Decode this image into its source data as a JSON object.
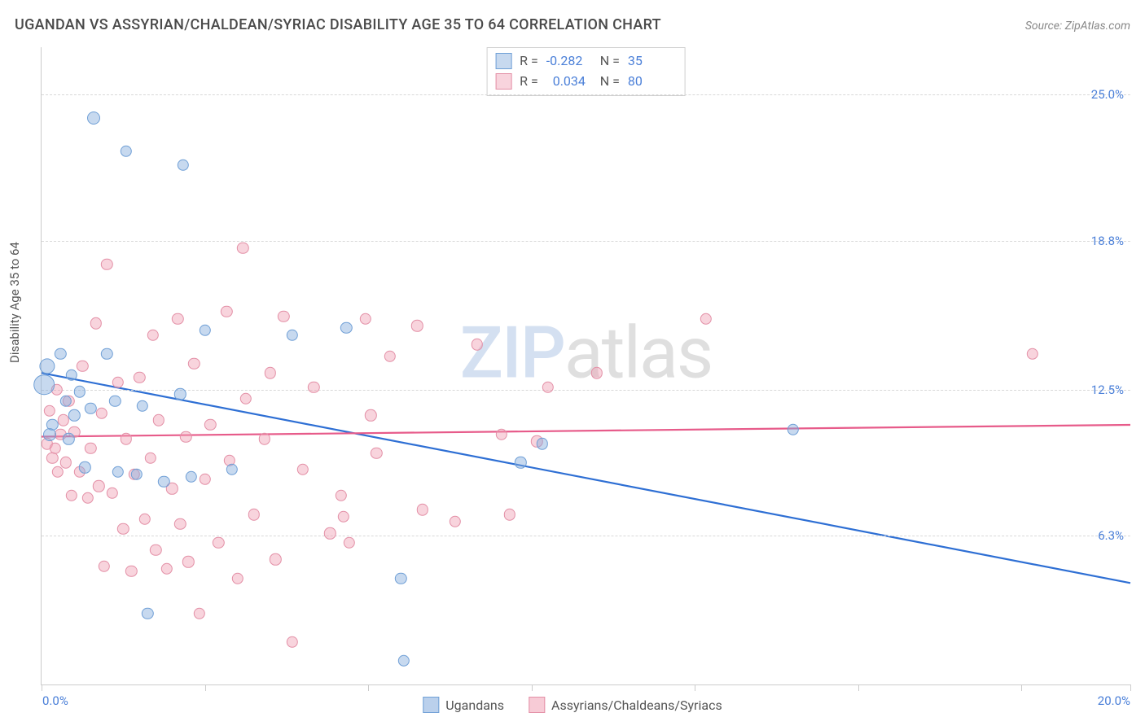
{
  "title": "UGANDAN VS ASSYRIAN/CHALDEAN/SYRIAC DISABILITY AGE 35 TO 64 CORRELATION CHART",
  "source": "Source: ZipAtlas.com",
  "ylabel": "Disability Age 35 to 64",
  "watermark_a": "ZIP",
  "watermark_b": "atlas",
  "chart": {
    "type": "scatter",
    "xlim": [
      0,
      20
    ],
    "ylim": [
      0,
      27
    ],
    "background_color": "#ffffff",
    "grid_color": "#d8d8d8",
    "axis_color": "#cccccc",
    "tick_label_color": "#4a7fd8",
    "x_ticks": [
      0,
      3.0,
      6.0,
      9.0,
      12.0,
      15.0,
      18.0,
      20.0
    ],
    "x_tick_labels": {
      "0": "0.0%",
      "20": "20.0%"
    },
    "y_ticks": [
      6.3,
      12.5,
      18.8,
      25.0
    ],
    "y_tick_labels": [
      "6.3%",
      "12.5%",
      "18.8%",
      "25.0%"
    ],
    "marker_base_radius": 8,
    "marker_border_width": 1.2,
    "trend_line_width": 2.2
  },
  "series": [
    {
      "name": "Ugandans",
      "fill": "rgba(130,170,220,0.45)",
      "stroke": "#6f9fd6",
      "line_color": "#2e6fd4",
      "R": "-0.282",
      "N": "35",
      "trend": {
        "x1": 0,
        "y1": 13.2,
        "x2": 20,
        "y2": 4.3
      },
      "points": [
        {
          "x": 0.05,
          "y": 12.7,
          "s": 1.6
        },
        {
          "x": 0.1,
          "y": 13.5,
          "s": 1.2
        },
        {
          "x": 0.15,
          "y": 10.6,
          "s": 1.0
        },
        {
          "x": 0.2,
          "y": 11.0,
          "s": 0.9
        },
        {
          "x": 0.35,
          "y": 14.0,
          "s": 0.9
        },
        {
          "x": 0.45,
          "y": 12.0,
          "s": 0.9
        },
        {
          "x": 0.5,
          "y": 10.4,
          "s": 0.9
        },
        {
          "x": 0.55,
          "y": 13.1,
          "s": 0.9
        },
        {
          "x": 0.6,
          "y": 11.4,
          "s": 0.9
        },
        {
          "x": 0.7,
          "y": 12.4,
          "s": 0.9
        },
        {
          "x": 0.8,
          "y": 9.2,
          "s": 0.9
        },
        {
          "x": 0.9,
          "y": 11.7,
          "s": 0.9
        },
        {
          "x": 0.95,
          "y": 24.0,
          "s": 1.0
        },
        {
          "x": 1.2,
          "y": 14.0,
          "s": 0.9
        },
        {
          "x": 1.35,
          "y": 12.0,
          "s": 0.9
        },
        {
          "x": 1.4,
          "y": 9.0,
          "s": 0.9
        },
        {
          "x": 1.55,
          "y": 22.6,
          "s": 0.9
        },
        {
          "x": 1.75,
          "y": 8.9,
          "s": 0.9
        },
        {
          "x": 1.85,
          "y": 11.8,
          "s": 0.9
        },
        {
          "x": 1.95,
          "y": 3.0,
          "s": 0.9
        },
        {
          "x": 2.25,
          "y": 8.6,
          "s": 0.9
        },
        {
          "x": 2.55,
          "y": 12.3,
          "s": 0.9
        },
        {
          "x": 2.6,
          "y": 22.0,
          "s": 0.9
        },
        {
          "x": 2.75,
          "y": 8.8,
          "s": 0.9
        },
        {
          "x": 3.0,
          "y": 15.0,
          "s": 0.9
        },
        {
          "x": 3.5,
          "y": 9.1,
          "s": 0.9
        },
        {
          "x": 4.6,
          "y": 14.8,
          "s": 0.9
        },
        {
          "x": 5.6,
          "y": 15.1,
          "s": 0.9
        },
        {
          "x": 6.6,
          "y": 4.5,
          "s": 0.9
        },
        {
          "x": 6.65,
          "y": 1.0,
          "s": 0.9
        },
        {
          "x": 8.8,
          "y": 9.4,
          "s": 0.9
        },
        {
          "x": 9.2,
          "y": 10.2,
          "s": 0.9
        },
        {
          "x": 13.8,
          "y": 10.8,
          "s": 0.9
        }
      ]
    },
    {
      "name": "Assyrians/Chaldeans/Syriacs",
      "fill": "rgba(240,160,180,0.45)",
      "stroke": "#e38fa6",
      "line_color": "#e75b8a",
      "R": "0.034",
      "N": "80",
      "trend": {
        "x1": 0,
        "y1": 10.5,
        "x2": 20,
        "y2": 11.0
      },
      "points": [
        {
          "x": 0.1,
          "y": 10.2,
          "s": 0.9
        },
        {
          "x": 0.15,
          "y": 11.6,
          "s": 0.9
        },
        {
          "x": 0.2,
          "y": 9.6,
          "s": 0.9
        },
        {
          "x": 0.25,
          "y": 10.0,
          "s": 0.9
        },
        {
          "x": 0.28,
          "y": 12.5,
          "s": 0.9
        },
        {
          "x": 0.3,
          "y": 9.0,
          "s": 0.9
        },
        {
          "x": 0.35,
          "y": 10.6,
          "s": 0.9
        },
        {
          "x": 0.4,
          "y": 11.2,
          "s": 0.9
        },
        {
          "x": 0.45,
          "y": 9.4,
          "s": 0.9
        },
        {
          "x": 0.5,
          "y": 12.0,
          "s": 0.9
        },
        {
          "x": 0.55,
          "y": 8.0,
          "s": 0.9
        },
        {
          "x": 0.6,
          "y": 10.7,
          "s": 0.9
        },
        {
          "x": 0.7,
          "y": 9.0,
          "s": 0.9
        },
        {
          "x": 0.75,
          "y": 13.5,
          "s": 0.9
        },
        {
          "x": 0.85,
          "y": 7.9,
          "s": 0.9
        },
        {
          "x": 0.9,
          "y": 10.0,
          "s": 0.9
        },
        {
          "x": 1.0,
          "y": 15.3,
          "s": 0.9
        },
        {
          "x": 1.05,
          "y": 8.4,
          "s": 0.9
        },
        {
          "x": 1.1,
          "y": 11.5,
          "s": 0.9
        },
        {
          "x": 1.15,
          "y": 5.0,
          "s": 0.9
        },
        {
          "x": 1.2,
          "y": 17.8,
          "s": 0.9
        },
        {
          "x": 1.3,
          "y": 8.1,
          "s": 0.9
        },
        {
          "x": 1.4,
          "y": 12.8,
          "s": 0.9
        },
        {
          "x": 1.5,
          "y": 6.6,
          "s": 0.9
        },
        {
          "x": 1.55,
          "y": 10.4,
          "s": 0.9
        },
        {
          "x": 1.65,
          "y": 4.8,
          "s": 0.9
        },
        {
          "x": 1.7,
          "y": 8.9,
          "s": 0.9
        },
        {
          "x": 1.8,
          "y": 13.0,
          "s": 0.9
        },
        {
          "x": 1.9,
          "y": 7.0,
          "s": 0.9
        },
        {
          "x": 2.0,
          "y": 9.6,
          "s": 0.9
        },
        {
          "x": 2.05,
          "y": 14.8,
          "s": 0.9
        },
        {
          "x": 2.1,
          "y": 5.7,
          "s": 0.9
        },
        {
          "x": 2.15,
          "y": 11.2,
          "s": 0.9
        },
        {
          "x": 2.3,
          "y": 4.9,
          "s": 0.9
        },
        {
          "x": 2.4,
          "y": 8.3,
          "s": 0.9
        },
        {
          "x": 2.5,
          "y": 15.5,
          "s": 0.9
        },
        {
          "x": 2.55,
          "y": 6.8,
          "s": 0.9
        },
        {
          "x": 2.65,
          "y": 10.5,
          "s": 0.9
        },
        {
          "x": 2.7,
          "y": 5.2,
          "s": 0.9
        },
        {
          "x": 2.8,
          "y": 13.6,
          "s": 0.9
        },
        {
          "x": 2.9,
          "y": 3.0,
          "s": 0.9
        },
        {
          "x": 3.0,
          "y": 8.7,
          "s": 0.9
        },
        {
          "x": 3.1,
          "y": 11.0,
          "s": 0.9
        },
        {
          "x": 3.25,
          "y": 6.0,
          "s": 0.9
        },
        {
          "x": 3.4,
          "y": 15.8,
          "s": 0.9
        },
        {
          "x": 3.45,
          "y": 9.5,
          "s": 0.9
        },
        {
          "x": 3.6,
          "y": 4.5,
          "s": 0.9
        },
        {
          "x": 3.7,
          "y": 18.5,
          "s": 0.9
        },
        {
          "x": 3.75,
          "y": 12.1,
          "s": 0.9
        },
        {
          "x": 3.9,
          "y": 7.2,
          "s": 0.9
        },
        {
          "x": 4.1,
          "y": 10.4,
          "s": 0.9
        },
        {
          "x": 4.2,
          "y": 13.2,
          "s": 0.9
        },
        {
          "x": 4.3,
          "y": 5.3,
          "s": 0.9
        },
        {
          "x": 4.45,
          "y": 15.6,
          "s": 0.9
        },
        {
          "x": 4.6,
          "y": 1.8,
          "s": 0.9
        },
        {
          "x": 4.8,
          "y": 9.1,
          "s": 0.9
        },
        {
          "x": 5.0,
          "y": 12.6,
          "s": 0.9
        },
        {
          "x": 5.3,
          "y": 6.4,
          "s": 0.9
        },
        {
          "x": 5.5,
          "y": 8.0,
          "s": 0.9
        },
        {
          "x": 5.55,
          "y": 7.1,
          "s": 0.9
        },
        {
          "x": 5.65,
          "y": 6.0,
          "s": 0.9
        },
        {
          "x": 5.95,
          "y": 15.5,
          "s": 0.9
        },
        {
          "x": 6.05,
          "y": 11.4,
          "s": 0.9
        },
        {
          "x": 6.15,
          "y": 9.8,
          "s": 0.9
        },
        {
          "x": 6.4,
          "y": 13.9,
          "s": 0.9
        },
        {
          "x": 6.9,
          "y": 15.2,
          "s": 0.9
        },
        {
          "x": 7.0,
          "y": 7.4,
          "s": 0.9
        },
        {
          "x": 7.6,
          "y": 6.9,
          "s": 0.9
        },
        {
          "x": 8.0,
          "y": 14.4,
          "s": 0.9
        },
        {
          "x": 8.45,
          "y": 10.6,
          "s": 0.9
        },
        {
          "x": 8.6,
          "y": 7.2,
          "s": 0.9
        },
        {
          "x": 9.1,
          "y": 10.3,
          "s": 0.9
        },
        {
          "x": 9.3,
          "y": 12.6,
          "s": 0.9
        },
        {
          "x": 10.2,
          "y": 13.2,
          "s": 0.9
        },
        {
          "x": 12.2,
          "y": 15.5,
          "s": 0.9
        },
        {
          "x": 18.2,
          "y": 14.0,
          "s": 0.9
        }
      ]
    }
  ],
  "bottom_legend": [
    {
      "label": "Ugandans",
      "fill": "rgba(130,170,220,0.55)",
      "stroke": "#6f9fd6"
    },
    {
      "label": "Assyrians/Chaldeans/Syriacs",
      "fill": "rgba(240,160,180,0.55)",
      "stroke": "#e38fa6"
    }
  ]
}
